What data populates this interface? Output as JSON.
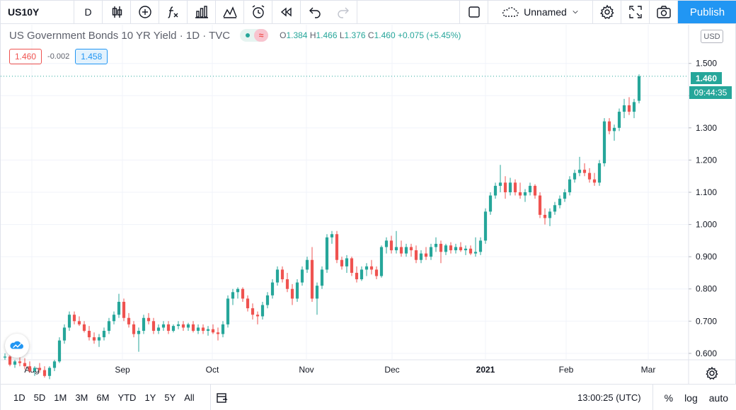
{
  "toolbar": {
    "symbol": "US10Y",
    "interval": "D",
    "layout_name": "Unnamed",
    "publish_label": "Publish",
    "icons": [
      "bar-style-icon",
      "compare-plus-icon",
      "indicators-fx-icon",
      "financials-icon",
      "templates-icon",
      "alert-icon",
      "replay-icon",
      "undo-icon",
      "redo-icon",
      "fullscreen-square-icon",
      "cloud-icon",
      "settings-gear-icon",
      "expand-icon",
      "camera-icon"
    ]
  },
  "legend": {
    "title": "US Government Bonds 10 YR Yield · 1D · TVC",
    "ohlc": {
      "o_label": "O",
      "o": "1.384",
      "h_label": "H",
      "h": "1.466",
      "l_label": "L",
      "l": "1.376",
      "c_label": "C",
      "c": "1.460",
      "change": "+0.075 (+5.45%)"
    },
    "bid": "1.460",
    "spread": "-0.002",
    "ask": "1.458"
  },
  "price_axis": {
    "currency": "USD",
    "labels": [
      "1.500",
      "1.400",
      "1.300",
      "1.200",
      "1.100",
      "1.000",
      "0.900",
      "0.800",
      "0.700",
      "0.600"
    ],
    "last_price": "1.460",
    "countdown": "09:44:35"
  },
  "time_axis": {
    "labels": [
      "Aug",
      "Sep",
      "Oct",
      "Nov",
      "Dec",
      "2021",
      "Feb",
      "Mar"
    ]
  },
  "bottom": {
    "ranges": [
      "1D",
      "5D",
      "1M",
      "3M",
      "6M",
      "YTD",
      "1Y",
      "5Y",
      "All"
    ],
    "time": "13:00:25 (UTC)",
    "percent": "%",
    "log": "log",
    "auto": "auto"
  },
  "colors": {
    "up": "#26a69a",
    "down": "#ef5350",
    "accent": "#2196f3",
    "grid": "#f0f3fa"
  },
  "chart_data": {
    "type": "candlestick",
    "title": "US Government Bonds 10 YR Yield · 1D · TVC",
    "ylim": [
      0.58,
      1.62
    ],
    "x_labels": [
      "Aug",
      "Sep",
      "Oct",
      "Nov",
      "Dec",
      "2021",
      "Feb",
      "Mar"
    ],
    "candles": [
      [
        0.587,
        0.6,
        0.58,
        0.59
      ],
      [
        0.59,
        0.595,
        0.56,
        0.565
      ],
      [
        0.565,
        0.58,
        0.555,
        0.575
      ],
      [
        0.575,
        0.59,
        0.56,
        0.57
      ],
      [
        0.57,
        0.585,
        0.55,
        0.56
      ],
      [
        0.56,
        0.575,
        0.54,
        0.545
      ],
      [
        0.545,
        0.56,
        0.53,
        0.555
      ],
      [
        0.555,
        0.57,
        0.54,
        0.548
      ],
      [
        0.548,
        0.56,
        0.525,
        0.53
      ],
      [
        0.53,
        0.56,
        0.52,
        0.555
      ],
      [
        0.555,
        0.58,
        0.545,
        0.575
      ],
      [
        0.575,
        0.65,
        0.57,
        0.64
      ],
      [
        0.64,
        0.69,
        0.63,
        0.68
      ],
      [
        0.68,
        0.73,
        0.67,
        0.72
      ],
      [
        0.72,
        0.73,
        0.69,
        0.7
      ],
      [
        0.7,
        0.715,
        0.685,
        0.69
      ],
      [
        0.69,
        0.7,
        0.665,
        0.67
      ],
      [
        0.67,
        0.685,
        0.64,
        0.65
      ],
      [
        0.65,
        0.665,
        0.63,
        0.64
      ],
      [
        0.64,
        0.66,
        0.62,
        0.65
      ],
      [
        0.65,
        0.68,
        0.64,
        0.67
      ],
      [
        0.67,
        0.71,
        0.66,
        0.7
      ],
      [
        0.7,
        0.73,
        0.69,
        0.72
      ],
      [
        0.72,
        0.785,
        0.71,
        0.76
      ],
      [
        0.76,
        0.77,
        0.7,
        0.71
      ],
      [
        0.71,
        0.725,
        0.68,
        0.69
      ],
      [
        0.69,
        0.7,
        0.65,
        0.66
      ],
      [
        0.66,
        0.68,
        0.605,
        0.67
      ],
      [
        0.67,
        0.72,
        0.66,
        0.71
      ],
      [
        0.71,
        0.725,
        0.69,
        0.7
      ],
      [
        0.7,
        0.71,
        0.66,
        0.67
      ],
      [
        0.67,
        0.69,
        0.66,
        0.68
      ],
      [
        0.68,
        0.7,
        0.67,
        0.69
      ],
      [
        0.69,
        0.7,
        0.66,
        0.67
      ],
      [
        0.67,
        0.69,
        0.665,
        0.685
      ],
      [
        0.685,
        0.7,
        0.675,
        0.69
      ],
      [
        0.69,
        0.7,
        0.67,
        0.68
      ],
      [
        0.68,
        0.695,
        0.67,
        0.69
      ],
      [
        0.69,
        0.7,
        0.665,
        0.67
      ],
      [
        0.67,
        0.69,
        0.66,
        0.68
      ],
      [
        0.68,
        0.69,
        0.66,
        0.67
      ],
      [
        0.67,
        0.685,
        0.655,
        0.675
      ],
      [
        0.675,
        0.69,
        0.66,
        0.665
      ],
      [
        0.665,
        0.68,
        0.64,
        0.66
      ],
      [
        0.66,
        0.7,
        0.65,
        0.69
      ],
      [
        0.69,
        0.78,
        0.68,
        0.77
      ],
      [
        0.77,
        0.8,
        0.75,
        0.79
      ],
      [
        0.79,
        0.805,
        0.77,
        0.8
      ],
      [
        0.8,
        0.805,
        0.76,
        0.77
      ],
      [
        0.77,
        0.78,
        0.73,
        0.74
      ],
      [
        0.74,
        0.755,
        0.705,
        0.72
      ],
      [
        0.72,
        0.73,
        0.69,
        0.715
      ],
      [
        0.715,
        0.76,
        0.705,
        0.75
      ],
      [
        0.75,
        0.79,
        0.74,
        0.78
      ],
      [
        0.78,
        0.83,
        0.77,
        0.82
      ],
      [
        0.82,
        0.87,
        0.81,
        0.86
      ],
      [
        0.86,
        0.87,
        0.82,
        0.83
      ],
      [
        0.83,
        0.85,
        0.79,
        0.8
      ],
      [
        0.8,
        0.815,
        0.75,
        0.77
      ],
      [
        0.77,
        0.83,
        0.76,
        0.82
      ],
      [
        0.82,
        0.87,
        0.81,
        0.86
      ],
      [
        0.86,
        0.9,
        0.85,
        0.89
      ],
      [
        0.89,
        0.93,
        0.76,
        0.77
      ],
      [
        0.77,
        0.82,
        0.72,
        0.81
      ],
      [
        0.81,
        0.87,
        0.8,
        0.86
      ],
      [
        0.86,
        0.97,
        0.85,
        0.96
      ],
      [
        0.96,
        0.98,
        0.94,
        0.97
      ],
      [
        0.97,
        0.98,
        0.88,
        0.89
      ],
      [
        0.89,
        0.9,
        0.86,
        0.87
      ],
      [
        0.87,
        0.905,
        0.85,
        0.895
      ],
      [
        0.895,
        0.9,
        0.84,
        0.85
      ],
      [
        0.85,
        0.87,
        0.82,
        0.83
      ],
      [
        0.83,
        0.87,
        0.825,
        0.86
      ],
      [
        0.86,
        0.88,
        0.84,
        0.87
      ],
      [
        0.87,
        0.89,
        0.845,
        0.86
      ],
      [
        0.86,
        0.87,
        0.83,
        0.84
      ],
      [
        0.84,
        0.935,
        0.835,
        0.93
      ],
      [
        0.93,
        0.96,
        0.91,
        0.95
      ],
      [
        0.95,
        0.965,
        0.91,
        0.92
      ],
      [
        0.92,
        0.98,
        0.91,
        0.93
      ],
      [
        0.93,
        0.95,
        0.9,
        0.91
      ],
      [
        0.91,
        0.94,
        0.9,
        0.93
      ],
      [
        0.93,
        0.94,
        0.9,
        0.92
      ],
      [
        0.92,
        0.935,
        0.88,
        0.89
      ],
      [
        0.89,
        0.92,
        0.88,
        0.91
      ],
      [
        0.91,
        0.93,
        0.89,
        0.9
      ],
      [
        0.9,
        0.94,
        0.89,
        0.93
      ],
      [
        0.93,
        0.96,
        0.915,
        0.94
      ],
      [
        0.94,
        0.95,
        0.88,
        0.915
      ],
      [
        0.915,
        0.94,
        0.905,
        0.935
      ],
      [
        0.935,
        0.945,
        0.91,
        0.92
      ],
      [
        0.92,
        0.94,
        0.91,
        0.93
      ],
      [
        0.93,
        0.945,
        0.915,
        0.92
      ],
      [
        0.92,
        0.935,
        0.905,
        0.925
      ],
      [
        0.925,
        0.935,
        0.905,
        0.91
      ],
      [
        0.91,
        0.96,
        0.9,
        0.915
      ],
      [
        0.915,
        0.96,
        0.905,
        0.95
      ],
      [
        0.95,
        1.05,
        0.94,
        1.04
      ],
      [
        1.04,
        1.1,
        1.03,
        1.09
      ],
      [
        1.09,
        1.13,
        1.08,
        1.12
      ],
      [
        1.12,
        1.185,
        1.1,
        1.13
      ],
      [
        1.13,
        1.15,
        1.08,
        1.1
      ],
      [
        1.1,
        1.145,
        1.09,
        1.13
      ],
      [
        1.13,
        1.14,
        1.09,
        1.1
      ],
      [
        1.1,
        1.13,
        1.08,
        1.09
      ],
      [
        1.09,
        1.11,
        1.07,
        1.1
      ],
      [
        1.1,
        1.13,
        1.09,
        1.12
      ],
      [
        1.12,
        1.125,
        1.08,
        1.09
      ],
      [
        1.09,
        1.1,
        1.02,
        1.03
      ],
      [
        1.03,
        1.05,
        1.0,
        1.02
      ],
      [
        1.02,
        1.05,
        0.995,
        1.04
      ],
      [
        1.04,
        1.07,
        1.03,
        1.06
      ],
      [
        1.06,
        1.09,
        1.05,
        1.08
      ],
      [
        1.08,
        1.11,
        1.07,
        1.1
      ],
      [
        1.1,
        1.15,
        1.09,
        1.14
      ],
      [
        1.14,
        1.17,
        1.13,
        1.16
      ],
      [
        1.16,
        1.21,
        1.15,
        1.17
      ],
      [
        1.17,
        1.19,
        1.15,
        1.16
      ],
      [
        1.16,
        1.175,
        1.13,
        1.14
      ],
      [
        1.14,
        1.16,
        1.12,
        1.13
      ],
      [
        1.13,
        1.2,
        1.12,
        1.19
      ],
      [
        1.19,
        1.33,
        1.18,
        1.32
      ],
      [
        1.32,
        1.33,
        1.28,
        1.29
      ],
      [
        1.29,
        1.31,
        1.26,
        1.3
      ],
      [
        1.3,
        1.36,
        1.29,
        1.35
      ],
      [
        1.35,
        1.39,
        1.33,
        1.37
      ],
      [
        1.37,
        1.395,
        1.34,
        1.35
      ],
      [
        1.35,
        1.39,
        1.33,
        1.38
      ],
      [
        1.384,
        1.466,
        1.376,
        1.46
      ]
    ]
  }
}
